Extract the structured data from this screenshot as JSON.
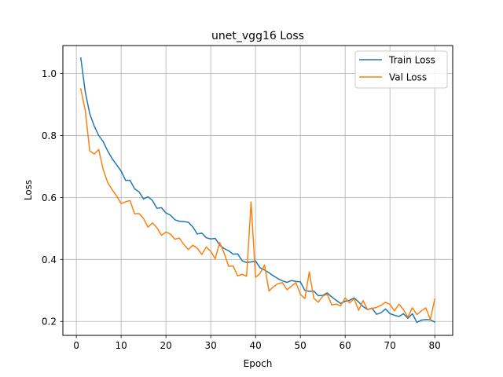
{
  "chart_data": {
    "type": "line",
    "title": "unet_vgg16 Loss",
    "xlabel": "Epoch",
    "ylabel": "Loss",
    "xlim": [
      -3,
      84
    ],
    "ylim": [
      0.155,
      1.09
    ],
    "xticks": [
      0,
      10,
      20,
      30,
      40,
      50,
      60,
      70,
      80
    ],
    "yticks": [
      0.2,
      0.4,
      0.6,
      0.8,
      1.0
    ],
    "grid": true,
    "legend_position": "top-right",
    "x": [
      1,
      2,
      3,
      4,
      5,
      6,
      7,
      8,
      9,
      10,
      11,
      12,
      13,
      14,
      15,
      16,
      17,
      18,
      19,
      20,
      21,
      22,
      23,
      24,
      25,
      26,
      27,
      28,
      29,
      30,
      31,
      32,
      33,
      34,
      35,
      36,
      37,
      38,
      39,
      40,
      41,
      42,
      43,
      44,
      45,
      46,
      47,
      48,
      49,
      50,
      51,
      52,
      53,
      54,
      55,
      56,
      57,
      58,
      59,
      60,
      61,
      62,
      63,
      64,
      65,
      66,
      67,
      68,
      69,
      70,
      71,
      72,
      73,
      74,
      75,
      76,
      77,
      78,
      79,
      80
    ],
    "series": [
      {
        "name": "Train Loss",
        "color": "#1f77b4",
        "values": [
          1.05,
          0.94,
          0.87,
          0.83,
          0.8,
          0.78,
          0.75,
          0.725,
          0.705,
          0.685,
          0.655,
          0.655,
          0.628,
          0.618,
          0.595,
          0.602,
          0.59,
          0.565,
          0.567,
          0.55,
          0.543,
          0.528,
          0.523,
          0.522,
          0.52,
          0.505,
          0.482,
          0.485,
          0.47,
          0.466,
          0.468,
          0.446,
          0.435,
          0.428,
          0.417,
          0.418,
          0.396,
          0.39,
          0.392,
          0.395,
          0.373,
          0.366,
          0.357,
          0.347,
          0.338,
          0.331,
          0.326,
          0.332,
          0.329,
          0.328,
          0.3,
          0.297,
          0.298,
          0.283,
          0.284,
          0.292,
          0.279,
          0.268,
          0.258,
          0.265,
          0.268,
          0.276,
          0.263,
          0.248,
          0.238,
          0.243,
          0.223,
          0.228,
          0.24,
          0.225,
          0.22,
          0.216,
          0.225,
          0.21,
          0.225,
          0.197,
          0.204,
          0.206,
          0.205,
          0.198
        ]
      },
      {
        "name": "Val Loss",
        "color": "#ff7f0e",
        "values": [
          0.95,
          0.88,
          0.75,
          0.74,
          0.755,
          0.69,
          0.648,
          0.625,
          0.605,
          0.58,
          0.586,
          0.59,
          0.547,
          0.548,
          0.532,
          0.504,
          0.518,
          0.502,
          0.478,
          0.488,
          0.482,
          0.465,
          0.469,
          0.448,
          0.432,
          0.446,
          0.436,
          0.416,
          0.44,
          0.426,
          0.402,
          0.455,
          0.42,
          0.378,
          0.379,
          0.347,
          0.352,
          0.346,
          0.585,
          0.342,
          0.355,
          0.382,
          0.298,
          0.312,
          0.322,
          0.325,
          0.302,
          0.314,
          0.325,
          0.288,
          0.274,
          0.36,
          0.275,
          0.262,
          0.282,
          0.288,
          0.253,
          0.256,
          0.25,
          0.276,
          0.26,
          0.273,
          0.236,
          0.267,
          0.238,
          0.242,
          0.245,
          0.252,
          0.262,
          0.255,
          0.234,
          0.256,
          0.238,
          0.214,
          0.244,
          0.222,
          0.234,
          0.244,
          0.206,
          0.272
        ]
      }
    ]
  }
}
